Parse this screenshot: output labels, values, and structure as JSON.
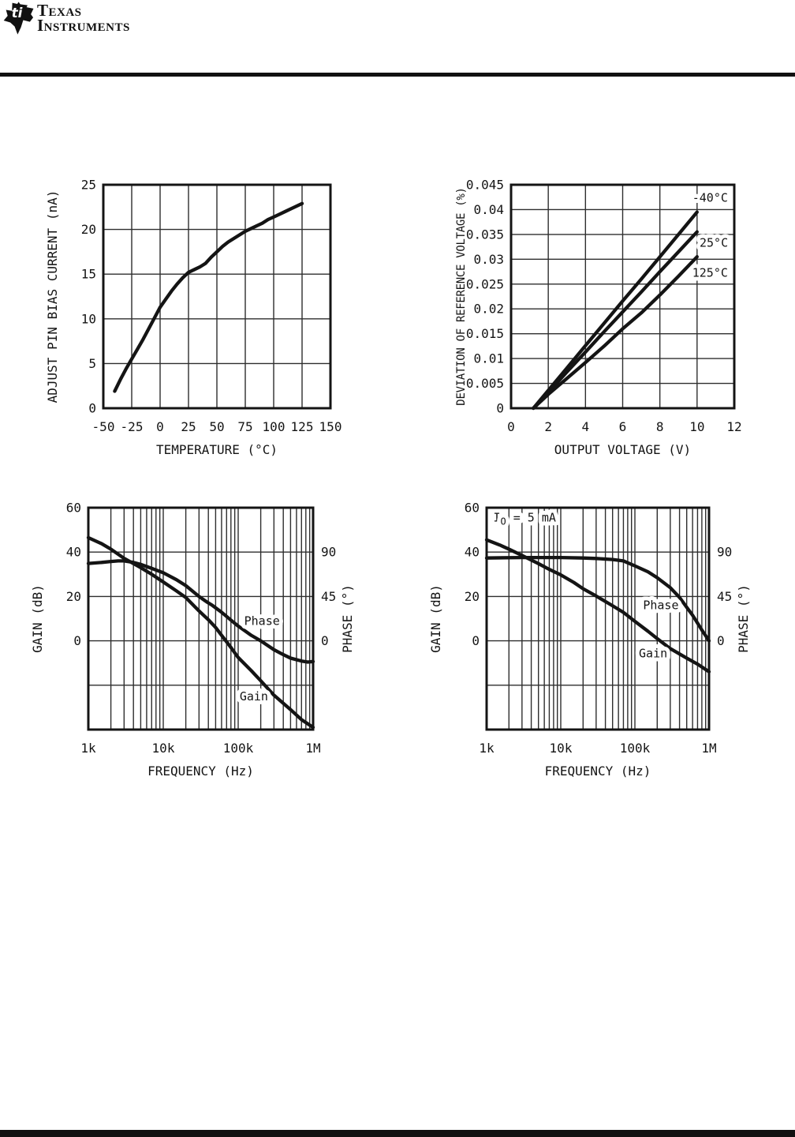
{
  "header": {
    "logo": {
      "mark": "ti",
      "line1": "Texas",
      "line2": "Instruments"
    }
  },
  "chart_data": [
    {
      "type": "line",
      "title": "",
      "xlabel": "TEMPERATURE (°C)",
      "ylabel": "ADJUST PIN BIAS CURRENT (nA)",
      "xscale": "linear",
      "xlim": [
        -50,
        150
      ],
      "ylim": [
        0,
        25
      ],
      "grid": "on",
      "xticks": [
        {
          "v": -50,
          "t": "-50"
        },
        {
          "v": -25,
          "t": "-25"
        },
        {
          "v": 0,
          "t": "0"
        },
        {
          "v": 25,
          "t": "25"
        },
        {
          "v": 50,
          "t": "50"
        },
        {
          "v": 75,
          "t": "75"
        },
        {
          "v": 100,
          "t": "100"
        },
        {
          "v": 125,
          "t": "125"
        },
        {
          "v": 150,
          "t": "150"
        }
      ],
      "yticks": [
        {
          "v": 0,
          "t": "0"
        },
        {
          "v": 5,
          "t": "5"
        },
        {
          "v": 10,
          "t": "10"
        },
        {
          "v": 15,
          "t": "15"
        },
        {
          "v": 20,
          "t": "20"
        },
        {
          "v": 25,
          "t": "25"
        }
      ],
      "series": [
        {
          "name": "Adjust Pin Bias Current",
          "axis": "left",
          "x": [
            -40,
            -35,
            -30,
            -25,
            -20,
            -15,
            -10,
            -5,
            0,
            5,
            10,
            15,
            20,
            25,
            30,
            35,
            40,
            45,
            50,
            55,
            60,
            65,
            70,
            75,
            80,
            85,
            90,
            95,
            100,
            105,
            110,
            115,
            120,
            125
          ],
          "y": [
            1.9,
            3.2,
            4.4,
            5.5,
            6.6,
            7.7,
            8.9,
            10.1,
            11.3,
            12.2,
            13.1,
            13.9,
            14.6,
            15.2,
            15.5,
            15.8,
            16.2,
            16.9,
            17.5,
            18.1,
            18.6,
            19.0,
            19.4,
            19.8,
            20.1,
            20.4,
            20.7,
            21.1,
            21.4,
            21.7,
            22.0,
            22.3,
            22.6,
            22.9
          ]
        }
      ],
      "annotations": []
    },
    {
      "type": "line",
      "title": "",
      "xlabel": "OUTPUT VOLTAGE (V)",
      "ylabel": "DEVIATION OF REFERENCE VOLTAGE (%)",
      "ylabel_size": 14,
      "xscale": "linear",
      "xlim": [
        0,
        12
      ],
      "ylim": [
        0,
        0.045
      ],
      "grid": "on",
      "xticks": [
        {
          "v": 0,
          "t": "0"
        },
        {
          "v": 2,
          "t": "2"
        },
        {
          "v": 4,
          "t": "4"
        },
        {
          "v": 6,
          "t": "6"
        },
        {
          "v": 8,
          "t": "8"
        },
        {
          "v": 10,
          "t": "10"
        },
        {
          "v": 12,
          "t": "12"
        }
      ],
      "yticks": [
        {
          "v": 0,
          "t": "0"
        },
        {
          "v": 0.005,
          "t": "0.005"
        },
        {
          "v": 0.01,
          "t": "0.01"
        },
        {
          "v": 0.015,
          "t": "0.015"
        },
        {
          "v": 0.02,
          "t": "0.02"
        },
        {
          "v": 0.025,
          "t": "0.025"
        },
        {
          "v": 0.03,
          "t": "0.03"
        },
        {
          "v": 0.035,
          "t": "0.035"
        },
        {
          "v": 0.04,
          "t": "0.04"
        },
        {
          "v": 0.045,
          "t": "0.045"
        }
      ],
      "series": [
        {
          "name": "-40°C",
          "axis": "left",
          "x": [
            1.2,
            2,
            3,
            4,
            5,
            6,
            7,
            8,
            9,
            10
          ],
          "y": [
            0,
            0.0036,
            0.0081,
            0.0126,
            0.0171,
            0.0216,
            0.026,
            0.0305,
            0.035,
            0.0395
          ]
        },
        {
          "name": "25°C",
          "axis": "left",
          "x": [
            1.2,
            2,
            3,
            4,
            5,
            6,
            7,
            8,
            9,
            10
          ],
          "y": [
            0,
            0.0032,
            0.0073,
            0.0113,
            0.0154,
            0.0194,
            0.0234,
            0.0275,
            0.0315,
            0.0355
          ]
        },
        {
          "name": "125°C",
          "axis": "left",
          "x": [
            1.2,
            2,
            3,
            4,
            5,
            6,
            7,
            8,
            9,
            10
          ],
          "y": [
            0,
            0.0028,
            0.006,
            0.0092,
            0.0125,
            0.016,
            0.0192,
            0.0228,
            0.0266,
            0.0305
          ]
        }
      ],
      "annotations": [
        {
          "text": "-40°C",
          "x": 10.7,
          "y": 0.0424
        },
        {
          "text": "25°C",
          "x": 10.9,
          "y": 0.0333
        },
        {
          "text": "125°C",
          "x": 10.7,
          "y": 0.0273
        }
      ]
    },
    {
      "type": "line",
      "title": "",
      "xlabel": "FREQUENCY (Hz)",
      "ylabel": "GAIN (dB)",
      "ylabel_right": "PHASE (°)",
      "xscale": "log",
      "xlim": [
        1000,
        1000000
      ],
      "ylim": [
        -40,
        60
      ],
      "grid": "on",
      "xticks": [
        {
          "v": 1000,
          "t": "1k"
        },
        {
          "v": 10000,
          "t": "10k"
        },
        {
          "v": 100000,
          "t": "100k"
        },
        {
          "v": 1000000,
          "t": "1M"
        }
      ],
      "yticks": [
        {
          "v": 60,
          "t": "60"
        },
        {
          "v": 40,
          "t": "40"
        },
        {
          "v": 20,
          "t": "20"
        },
        {
          "v": 0,
          "t": "0"
        }
      ],
      "ygrid": [
        -20,
        0,
        20,
        40
      ],
      "right_axis": {
        "to_left": 0.44444,
        "ticks": [
          {
            "v": 90,
            "t": "90"
          },
          {
            "v": 45,
            "t": "45"
          },
          {
            "v": 0,
            "t": "0"
          }
        ]
      },
      "series": [
        {
          "name": "Gain",
          "axis": "left",
          "x": [
            1000,
            1500,
            2000,
            3000,
            4000,
            5000,
            7000,
            10000,
            15000,
            20000,
            30000,
            40000,
            50000,
            60000,
            80000,
            100000,
            150000,
            200000,
            300000,
            500000,
            700000,
            1000000
          ],
          "y": [
            46.5,
            43.8,
            41.3,
            37.2,
            34.8,
            33,
            30,
            26.5,
            22.5,
            19.5,
            13.5,
            9.5,
            6,
            2.5,
            -3,
            -7.5,
            -13.5,
            -18,
            -24.5,
            -31,
            -35.5,
            -39
          ]
        },
        {
          "name": "Phase",
          "axis": "right",
          "x": [
            1000,
            1500,
            2000,
            2500,
            3000,
            4000,
            5000,
            7000,
            10000,
            15000,
            20000,
            30000,
            38000,
            45000,
            60000,
            80000,
            100000,
            150000,
            200000,
            300000,
            400000,
            500000,
            700000,
            850000,
            1000000
          ],
          "y": [
            78.5,
            79.5,
            80.5,
            81,
            81,
            79.5,
            77.5,
            73.5,
            69,
            62,
            56,
            45,
            39.5,
            36,
            29,
            21,
            15,
            5.5,
            0,
            -9,
            -14,
            -17.5,
            -20.5,
            -21.5,
            -21
          ]
        }
      ],
      "annotations": [
        {
          "text": "Phase",
          "x": 208000,
          "y": 9
        },
        {
          "text": "Gain",
          "x": 162000,
          "y": -25
        }
      ]
    },
    {
      "type": "line",
      "title": "",
      "xlabel": "FREQUENCY (Hz)",
      "ylabel": "GAIN (dB)",
      "ylabel_right": "PHASE (°)",
      "xscale": "log",
      "xlim": [
        1000,
        1000000
      ],
      "ylim": [
        -40,
        60
      ],
      "grid": "on",
      "xticks": [
        {
          "v": 1000,
          "t": "1k"
        },
        {
          "v": 10000,
          "t": "10k"
        },
        {
          "v": 100000,
          "t": "100k"
        },
        {
          "v": 1000000,
          "t": "1M"
        }
      ],
      "yticks": [
        {
          "v": 60,
          "t": "60"
        },
        {
          "v": 40,
          "t": "40"
        },
        {
          "v": 20,
          "t": "20"
        },
        {
          "v": 0,
          "t": "0"
        }
      ],
      "ygrid": [
        -20,
        0,
        20,
        40
      ],
      "right_axis": {
        "to_left": 0.44444,
        "ticks": [
          {
            "v": 90,
            "t": "90"
          },
          {
            "v": 45,
            "t": "45"
          },
          {
            "v": 0,
            "t": "0"
          }
        ]
      },
      "series": [
        {
          "name": "Gain",
          "axis": "left",
          "x": [
            1000,
            1500,
            2000,
            3000,
            5000,
            7000,
            10000,
            15000,
            20000,
            30000,
            50000,
            70000,
            100000,
            150000,
            200000,
            300000,
            500000,
            700000,
            1000000
          ],
          "y": [
            45.5,
            43.2,
            41.3,
            38.5,
            34.8,
            32.2,
            29.7,
            26.3,
            23.5,
            20.2,
            15.8,
            12.8,
            8.8,
            4.3,
            1,
            -3.5,
            -7.8,
            -10.5,
            -13.9
          ]
        },
        {
          "name": "Phase",
          "axis": "right",
          "x": [
            1000,
            3000,
            5000,
            10000,
            20000,
            30000,
            50000,
            70000,
            100000,
            150000,
            200000,
            300000,
            400000,
            500000,
            600000,
            700000,
            800000,
            1000000
          ],
          "y": [
            84,
            84.5,
            84.5,
            84.5,
            84,
            83.5,
            82.5,
            81,
            76,
            70,
            64,
            54,
            44,
            34,
            26,
            18,
            11,
            0
          ]
        }
      ],
      "annotations": [
        {
          "text": "Phase",
          "x": 224000,
          "y": 16
        },
        {
          "text": "Gain",
          "x": 176000,
          "y": -5.7
        },
        {
          "segments": [
            {
              "t": "I"
            },
            {
              "t": "O",
              "sub": true
            },
            {
              "t": " = 5 mA"
            }
          ],
          "name": "io-5ma",
          "x": 1230,
          "y": 55.5,
          "anchor": "start"
        }
      ]
    }
  ]
}
